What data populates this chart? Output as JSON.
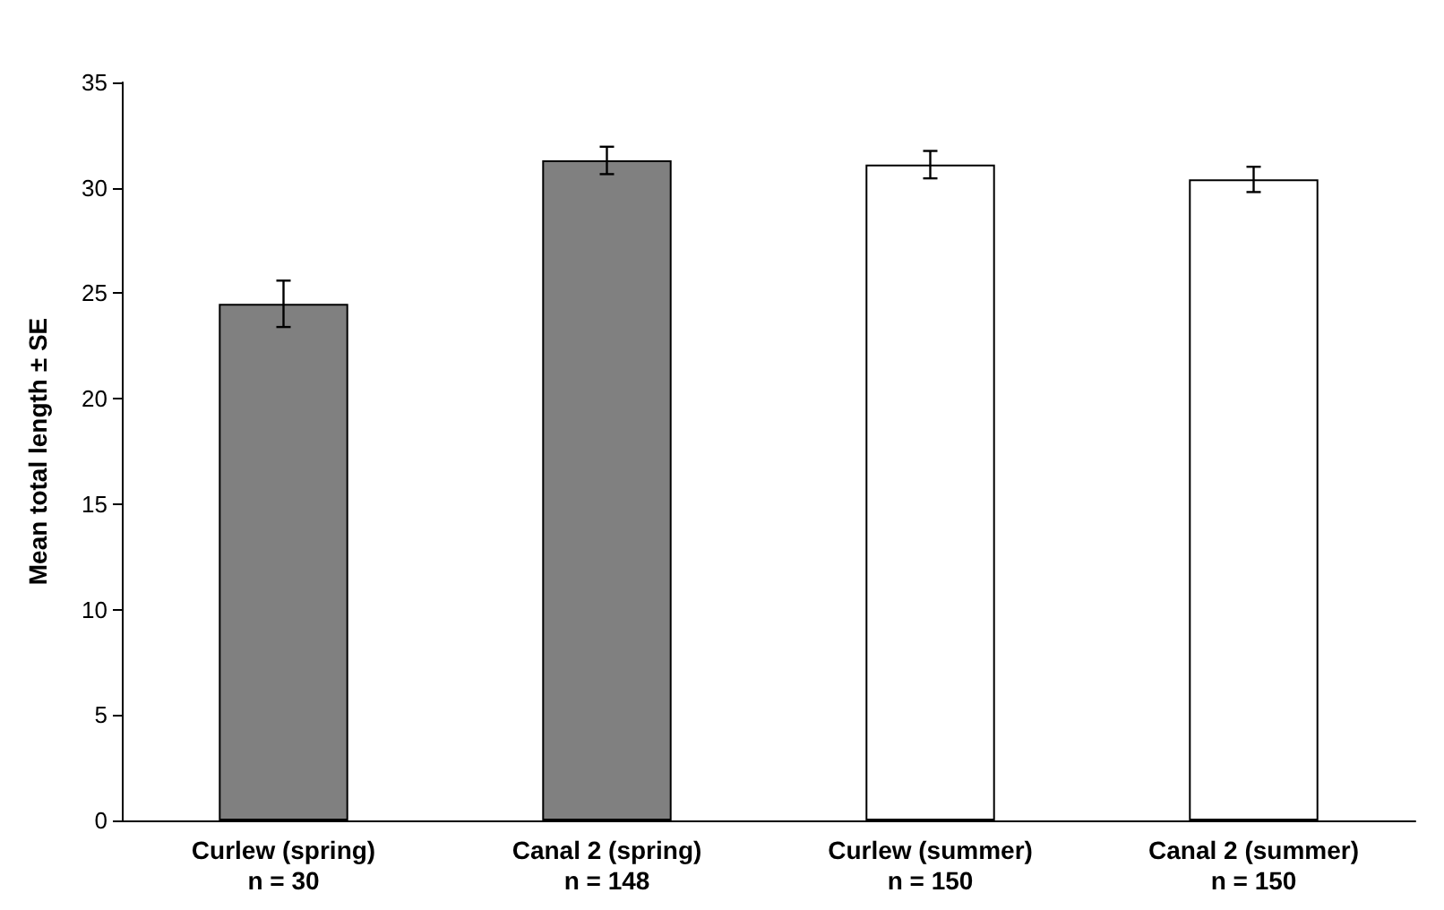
{
  "chart_data": {
    "type": "bar",
    "ylabel": "Mean total length ± SE",
    "categories": [
      "Curlew (spring)\nn = 30",
      "Canal 2 (spring)\nn = 148",
      "Curlew (summer)\nn = 150",
      "Canal 2 (summer)\nn = 150"
    ],
    "values": [
      24.5,
      31.3,
      31.1,
      30.4
    ],
    "errors": [
      1.1,
      0.65,
      0.65,
      0.6
    ],
    "colors": [
      "#808080",
      "#808080",
      "#ffffff",
      "#ffffff"
    ],
    "ylim": [
      0,
      35
    ],
    "yticks": [
      0,
      5,
      10,
      15,
      20,
      25,
      30,
      35
    ],
    "grid": false
  }
}
